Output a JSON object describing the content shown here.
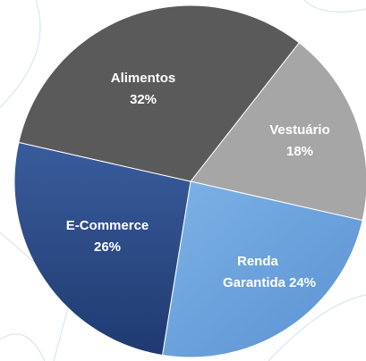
{
  "chart_data": {
    "type": "pie",
    "categories": [
      "Vestuário",
      "Renda Garantida",
      "E-Commerce",
      "Alimentos"
    ],
    "values": [
      18,
      24,
      26,
      32
    ],
    "value_labels": [
      "18%",
      "24%",
      "26%",
      "32%"
    ],
    "colors": [
      "#a6a6a6",
      "#6a9fdc",
      "#2c4a86",
      "#5a5a5a"
    ]
  }
}
